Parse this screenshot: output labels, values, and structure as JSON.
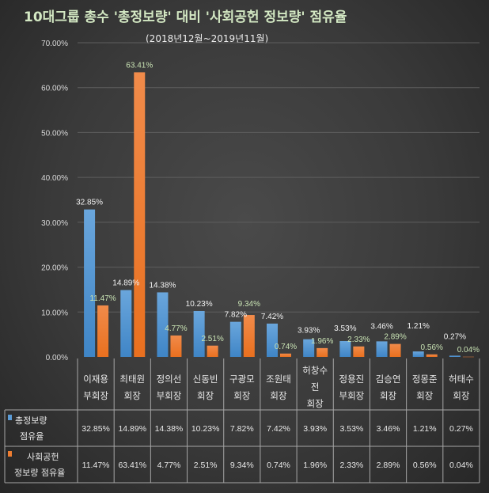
{
  "chart_data": {
    "type": "bar",
    "title": "10대그룹 총수 '총정보량' 대비 '사회공헌 정보량' 점유율",
    "subtitle": "(2018년12월~2019년11월)",
    "ylim": [
      0,
      70
    ],
    "yticks": [
      "0.00%",
      "10.00%",
      "20.00%",
      "30.00%",
      "40.00%",
      "50.00%",
      "60.00%",
      "70.00%"
    ],
    "grid": true,
    "categories": [
      [
        "이재용",
        "부회장"
      ],
      [
        "최태원",
        "회장"
      ],
      [
        "정의선",
        "부회장"
      ],
      [
        "신동빈",
        "회장"
      ],
      [
        "구광모",
        "회장"
      ],
      [
        "조원태",
        "회장"
      ],
      [
        "허창수",
        "전",
        "회장"
      ],
      [
        "정용진",
        "부회장"
      ],
      [
        "김승연",
        "회장"
      ],
      [
        "정몽준",
        "회장"
      ],
      [
        "허태수",
        "회장"
      ]
    ],
    "series": [
      {
        "name": [
          "총정보량",
          "점유율"
        ],
        "color": "#5b9bd5",
        "label_color": "#f2f2f2",
        "values": [
          32.85,
          14.89,
          14.38,
          10.23,
          7.82,
          7.42,
          3.93,
          3.53,
          3.46,
          1.21,
          0.27
        ],
        "labels": [
          "32.85%",
          "14.89%",
          "14.38%",
          "10.23%",
          "7.82%",
          "7.42%",
          "3.93%",
          "3.53%",
          "3.46%",
          "1.21%",
          "0.27%"
        ]
      },
      {
        "name": [
          "사회공헌",
          "정보량 점유율"
        ],
        "color": "#ed7d31",
        "label_color": "#c9e3b4",
        "values": [
          11.47,
          63.41,
          4.77,
          2.51,
          9.34,
          0.74,
          1.96,
          2.33,
          2.89,
          0.56,
          0.04
        ],
        "labels": [
          "11.47%",
          "63.41%",
          "4.77%",
          "2.51%",
          "9.34%",
          "0.74%",
          "1.96%",
          "2.33%",
          "2.89%",
          "0.56%",
          "0.04%"
        ]
      }
    ],
    "legend": "data-table"
  }
}
